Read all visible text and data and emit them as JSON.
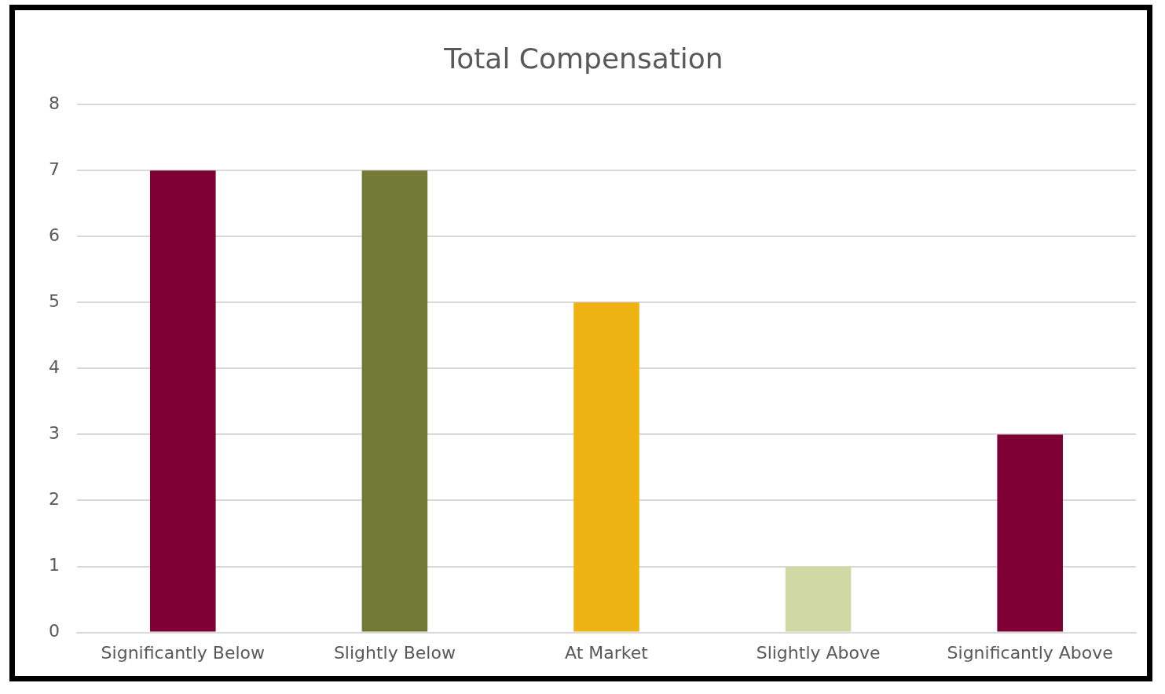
{
  "chart_data": {
    "type": "bar",
    "title": "Total Compensation",
    "categories": [
      "Significantly Below",
      "Slightly Below",
      "At Market",
      "Slightly Above",
      "Significantly Above"
    ],
    "values": [
      7,
      7,
      5,
      1,
      3
    ],
    "colors": [
      "#7f0034",
      "#737a35",
      "#efb213",
      "#d0d8a3",
      "#7f0034"
    ],
    "ylim": [
      0,
      8
    ],
    "yticks": [
      0,
      1,
      2,
      3,
      4,
      5,
      6,
      7,
      8
    ],
    "grid": "y",
    "legend": false
  }
}
